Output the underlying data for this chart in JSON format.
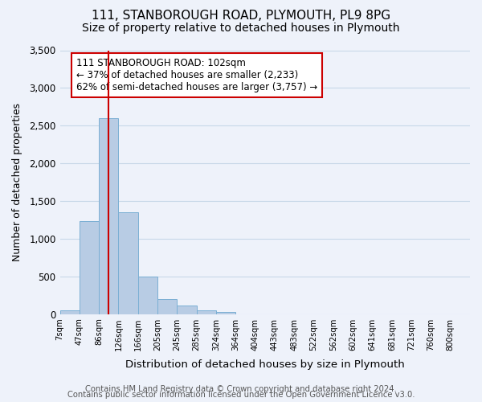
{
  "title_line1": "111, STANBOROUGH ROAD, PLYMOUTH, PL9 8PG",
  "title_line2": "Size of property relative to detached houses in Plymouth",
  "xlabel": "Distribution of detached houses by size in Plymouth",
  "ylabel": "Number of detached properties",
  "bin_labels": [
    "7sqm",
    "47sqm",
    "86sqm",
    "126sqm",
    "166sqm",
    "205sqm",
    "245sqm",
    "285sqm",
    "324sqm",
    "364sqm",
    "404sqm",
    "443sqm",
    "483sqm",
    "522sqm",
    "562sqm",
    "602sqm",
    "641sqm",
    "681sqm",
    "721sqm",
    "760sqm",
    "800sqm"
  ],
  "bar_values": [
    50,
    1230,
    2600,
    1350,
    500,
    200,
    110,
    50,
    30,
    0,
    0,
    0,
    0,
    0,
    0,
    0,
    0,
    0,
    0,
    0
  ],
  "bar_color": "#b8cce4",
  "bar_edge_color": "#7bafd4",
  "vline_x": 2.5,
  "vline_color": "#cc0000",
  "annotation_text": "111 STANBOROUGH ROAD: 102sqm\n← 37% of detached houses are smaller (2,233)\n62% of semi-detached houses are larger (3,757) →",
  "annotation_box_color": "#ffffff",
  "annotation_box_edge": "#cc0000",
  "ylim": [
    0,
    3500
  ],
  "yticks": [
    0,
    500,
    1000,
    1500,
    2000,
    2500,
    3000,
    3500
  ],
  "footer_line1": "Contains HM Land Registry data © Crown copyright and database right 2024.",
  "footer_line2": "Contains public sector information licensed under the Open Government Licence v3.0.",
  "background_color": "#eef2fa",
  "grid_color": "#c8d8e8",
  "title1_fontsize": 11,
  "title2_fontsize": 10,
  "xlabel_fontsize": 9.5,
  "ylabel_fontsize": 9,
  "footer_fontsize": 7.2
}
